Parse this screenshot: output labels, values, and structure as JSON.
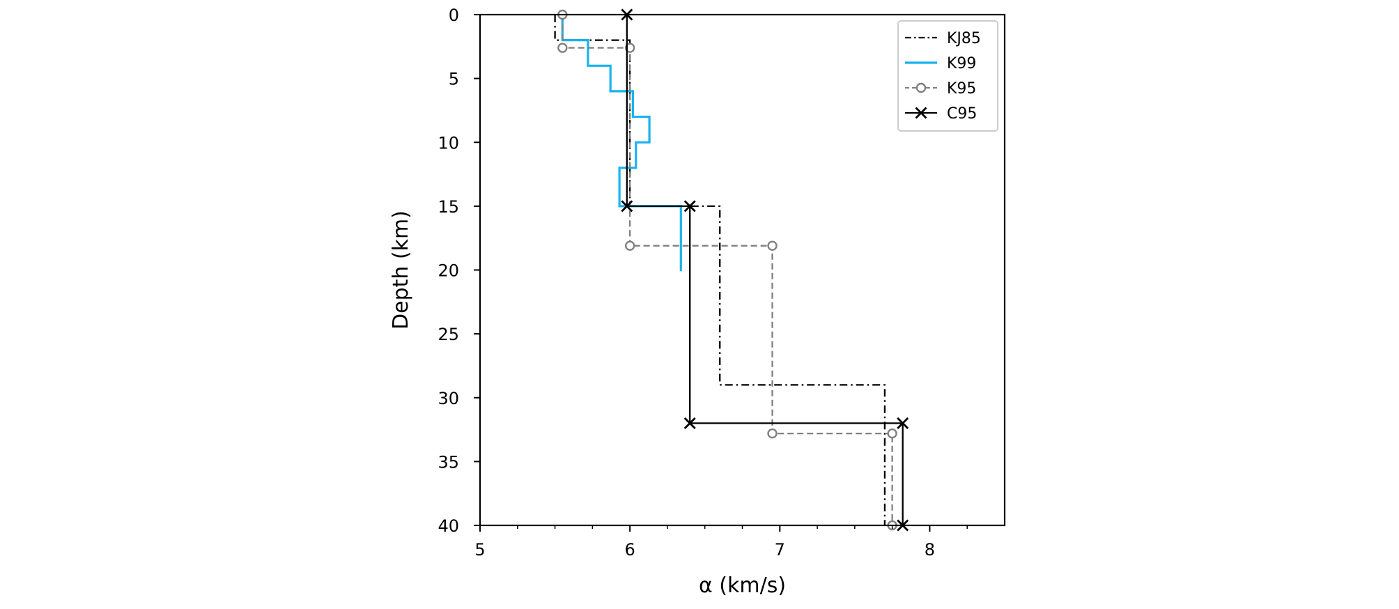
{
  "chart_data": {
    "type": "line",
    "xlabel": "α (km/s)",
    "ylabel": "Depth (km)",
    "xlim": [
      5,
      8.5
    ],
    "ylim": [
      0,
      40
    ],
    "y_inverted": true,
    "x_ticks": [
      5,
      6,
      7,
      8
    ],
    "y_ticks": [
      0,
      5,
      10,
      15,
      20,
      25,
      30,
      35,
      40
    ],
    "grid": false,
    "legend_position": "top-right",
    "series": [
      {
        "name": "KJ85",
        "color": "#000000",
        "line_style": "dash-dot",
        "marker": "none",
        "points": [
          [
            5.5,
            0
          ],
          [
            5.5,
            2
          ],
          [
            6.0,
            2
          ],
          [
            6.0,
            15
          ],
          [
            6.6,
            15
          ],
          [
            6.6,
            29
          ],
          [
            7.7,
            29
          ],
          [
            7.7,
            40
          ]
        ]
      },
      {
        "name": "K99",
        "color": "#1ab2ee",
        "line_style": "solid",
        "marker": "none",
        "points": [
          [
            5.55,
            0
          ],
          [
            5.55,
            2
          ],
          [
            5.72,
            2
          ],
          [
            5.72,
            4
          ],
          [
            5.87,
            4
          ],
          [
            5.87,
            6
          ],
          [
            6.02,
            6
          ],
          [
            6.02,
            8
          ],
          [
            6.13,
            8
          ],
          [
            6.13,
            10
          ],
          [
            6.04,
            10
          ],
          [
            6.04,
            12
          ],
          [
            5.93,
            12
          ],
          [
            5.93,
            15
          ],
          [
            6.34,
            15
          ],
          [
            6.34,
            20.1
          ]
        ]
      },
      {
        "name": "K95",
        "color": "#808080",
        "line_style": "dashed",
        "marker": "circle",
        "points": [
          [
            5.55,
            0
          ],
          [
            5.55,
            2.6
          ],
          [
            6.0,
            2.6
          ],
          [
            6.0,
            18.1
          ],
          [
            6.95,
            18.1
          ],
          [
            6.95,
            32.8
          ],
          [
            7.75,
            32.8
          ],
          [
            7.75,
            40
          ]
        ],
        "marker_points": [
          [
            5.55,
            0
          ],
          [
            5.55,
            2.6
          ],
          [
            6.0,
            2.6
          ],
          [
            6.0,
            18.1
          ],
          [
            6.95,
            18.1
          ],
          [
            6.95,
            32.8
          ],
          [
            7.75,
            32.8
          ],
          [
            7.75,
            40
          ]
        ]
      },
      {
        "name": "C95",
        "color": "#000000",
        "line_style": "solid",
        "marker": "x",
        "points": [
          [
            5.98,
            0
          ],
          [
            5.98,
            15
          ],
          [
            6.4,
            15
          ],
          [
            6.4,
            32
          ],
          [
            7.82,
            32
          ],
          [
            7.82,
            40
          ]
        ],
        "marker_points": [
          [
            5.98,
            0
          ],
          [
            5.98,
            15
          ],
          [
            6.4,
            15
          ],
          [
            6.4,
            32
          ],
          [
            7.82,
            32
          ],
          [
            7.82,
            40
          ]
        ]
      }
    ]
  }
}
